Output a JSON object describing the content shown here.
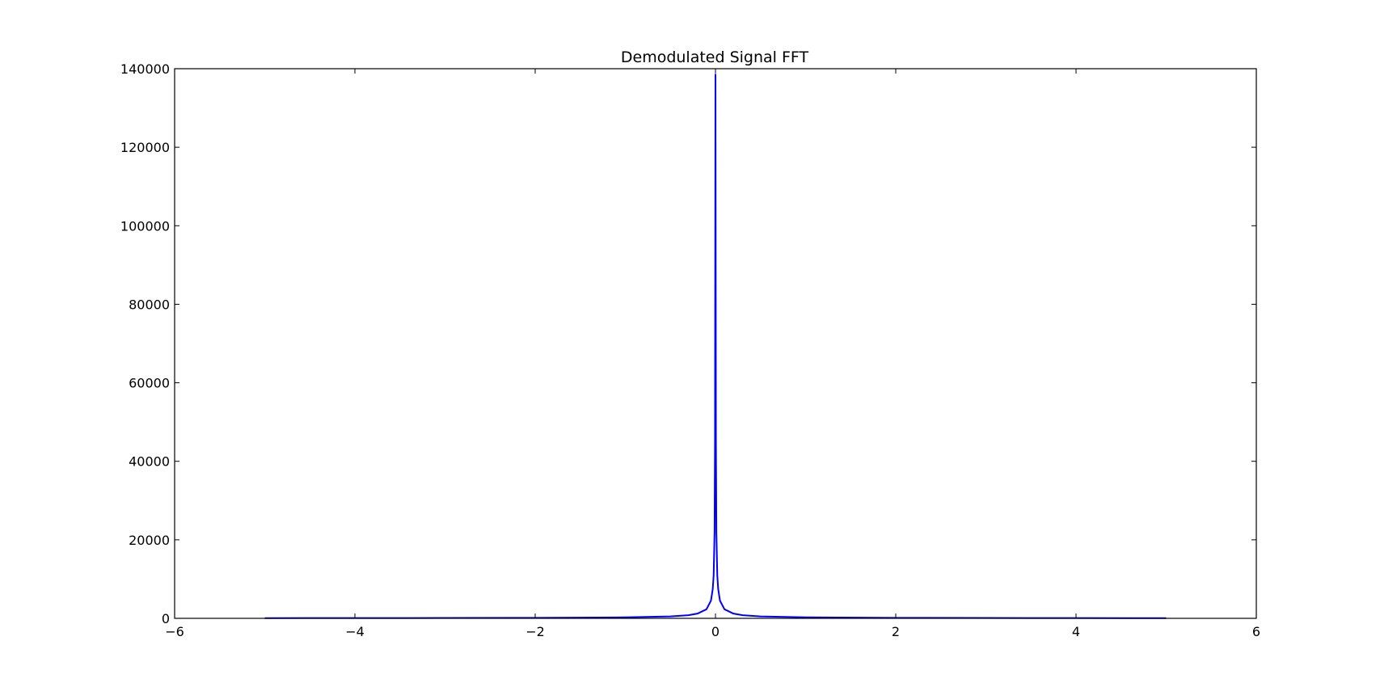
{
  "chart_data": {
    "type": "line",
    "title": "Demodulated Signal FFT",
    "xlabel": "",
    "ylabel": "",
    "xlim": [
      -6,
      6
    ],
    "ylim": [
      0,
      140000
    ],
    "xticks": [
      -6,
      -4,
      -2,
      0,
      2,
      4,
      6
    ],
    "xtick_labels": [
      "−6",
      "−4",
      "−2",
      "0",
      "2",
      "4",
      "6"
    ],
    "yticks": [
      0,
      20000,
      40000,
      60000,
      80000,
      100000,
      120000,
      140000
    ],
    "ytick_labels": [
      "0",
      "20000",
      "40000",
      "60000",
      "80000",
      "100000",
      "120000",
      "140000"
    ],
    "grid": false,
    "legend": "none",
    "series": [
      {
        "color": "#0000ff",
        "x": [
          -5,
          -4,
          -3,
          -2,
          -1,
          -0.5,
          -0.3,
          -0.2,
          -0.1,
          -0.05,
          -0.03,
          -0.02,
          -0.01,
          -0.005,
          0,
          0.005,
          0.01,
          0.02,
          0.03,
          0.05,
          0.1,
          0.2,
          0.3,
          0.5,
          1,
          2,
          3,
          4,
          5
        ],
        "y": [
          60,
          70,
          90,
          130,
          250,
          500,
          800,
          1200,
          2300,
          4500,
          7500,
          11000,
          22000,
          45000,
          138500,
          45000,
          22000,
          11000,
          7500,
          4500,
          2300,
          1200,
          800,
          500,
          250,
          130,
          90,
          70,
          60
        ]
      }
    ]
  }
}
